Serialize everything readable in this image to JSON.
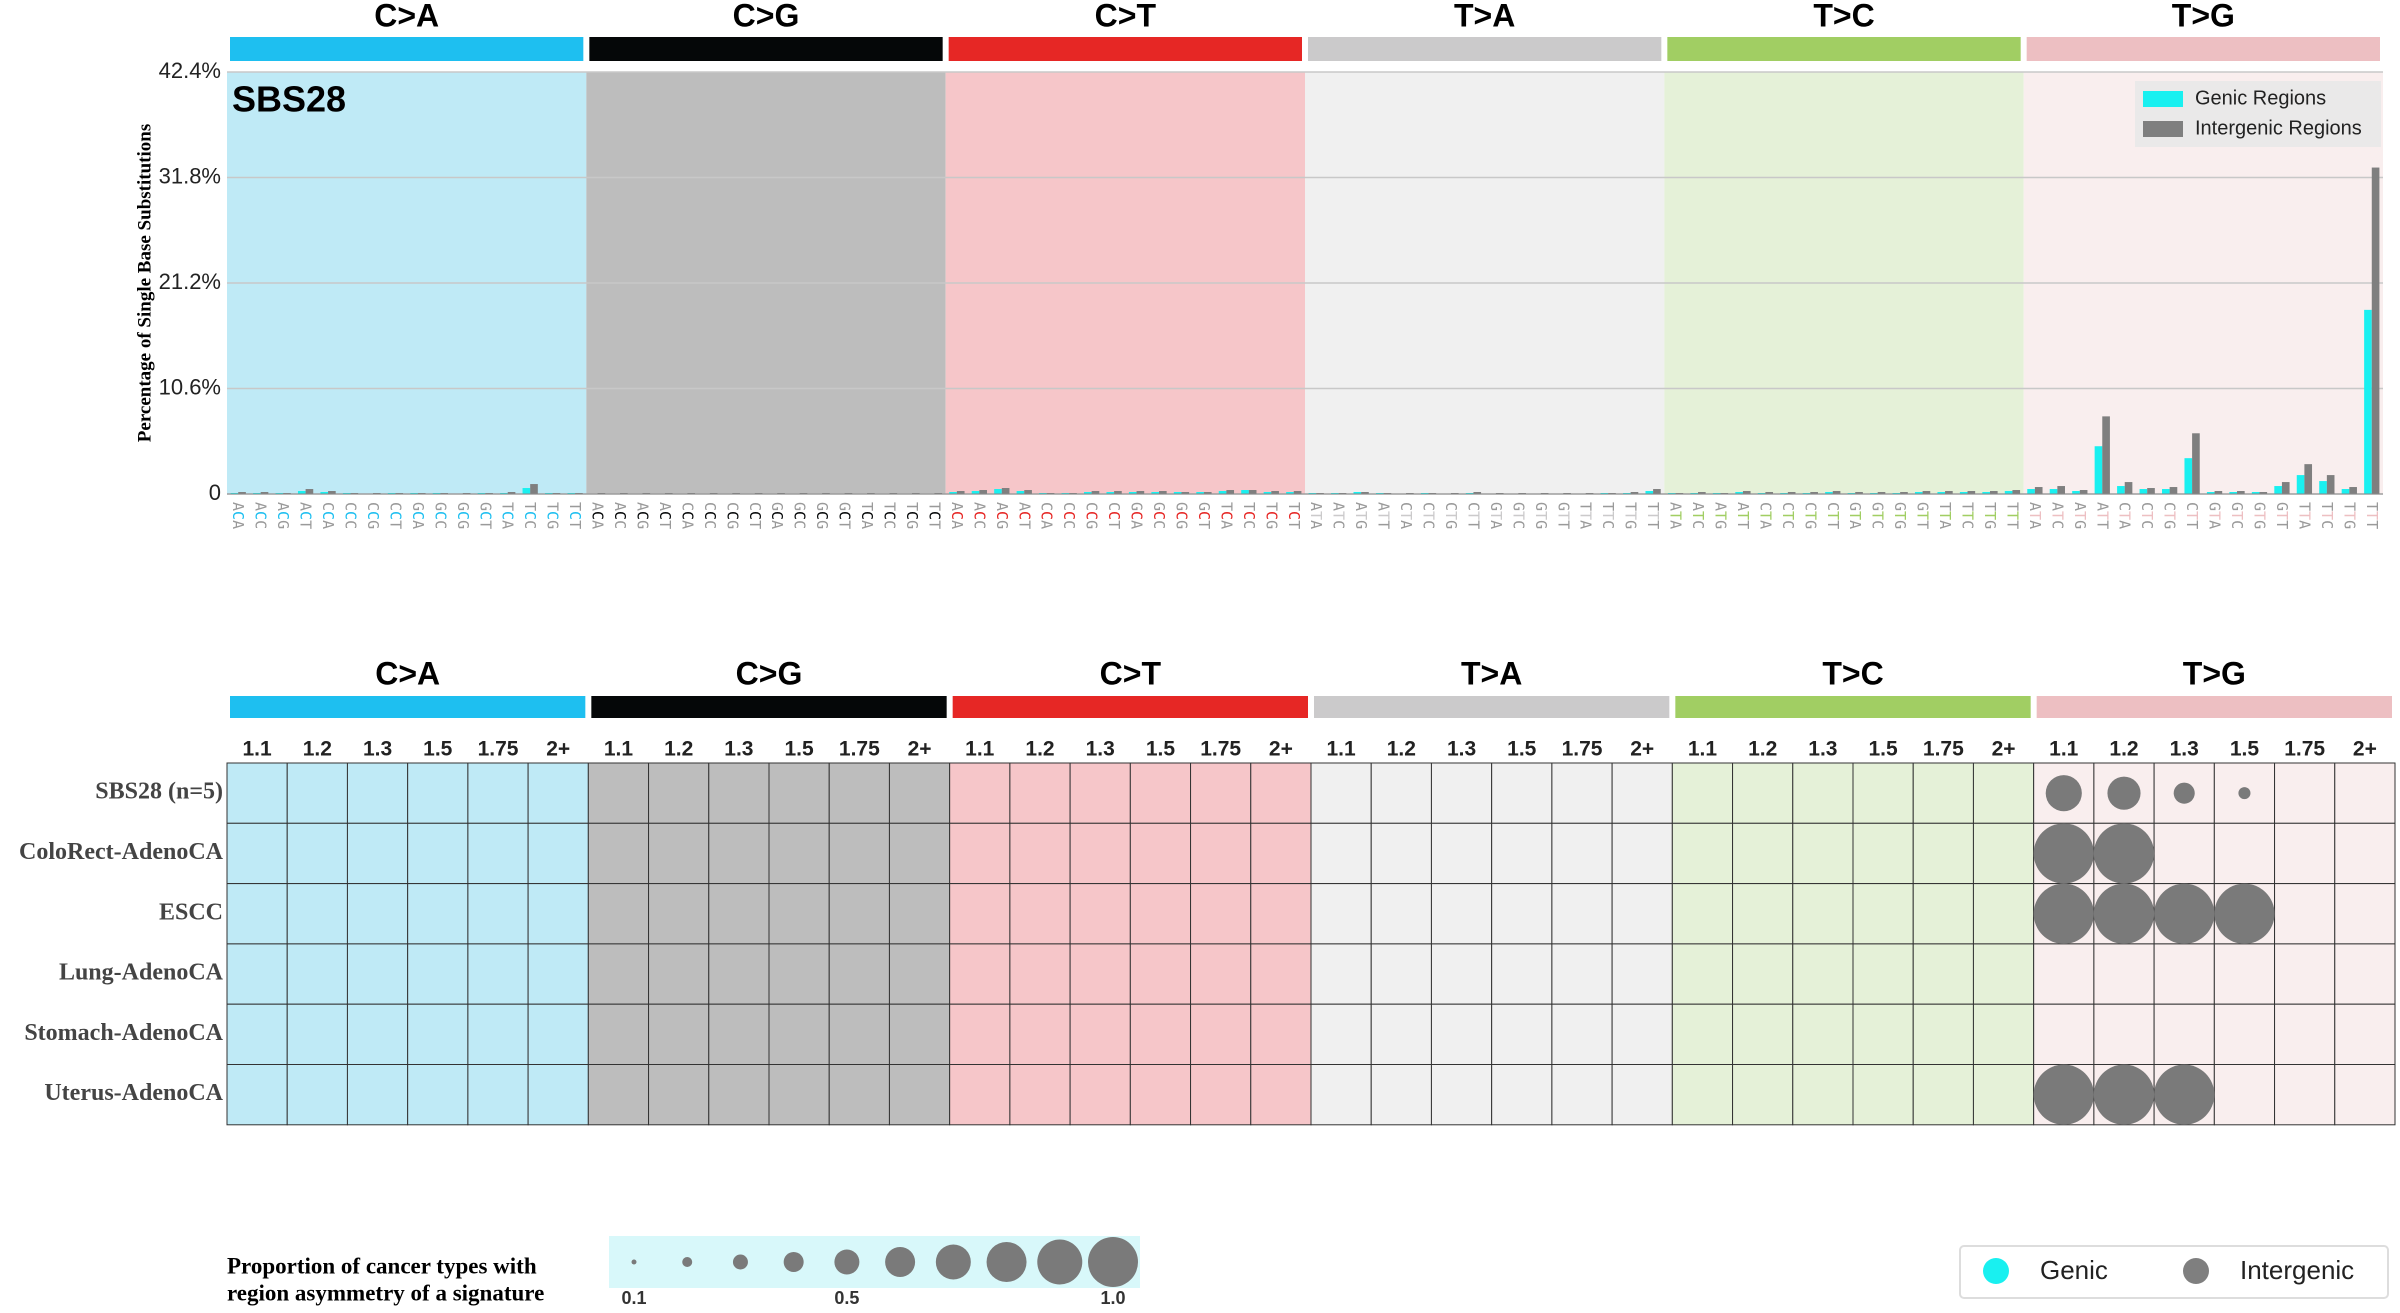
{
  "chart_data": [
    {
      "type": "bar",
      "annotation": "SBS28",
      "ylabel": "Percentage of Single Base Substitutions",
      "groups": [
        {
          "name": "C>A",
          "color": "#1ebff0",
          "background": "#bfeaf6"
        },
        {
          "name": "C>G",
          "color": "#050708",
          "background": "#bdbdbd"
        },
        {
          "name": "C>T",
          "color": "#e62725",
          "background": "#f6c6c9"
        },
        {
          "name": "T>A",
          "color": "#cbcacb",
          "background": "#f0f0f0"
        },
        {
          "name": "T>C",
          "color": "#a1ce63",
          "background": "#e5f1d8"
        },
        {
          "name": "T>G",
          "color": "#edbfc2",
          "background": "#f9eeee"
        }
      ],
      "categories": [
        "ACA",
        "ACC",
        "ACG",
        "ACT",
        "CCA",
        "CCC",
        "CCG",
        "CCT",
        "GCA",
        "GCC",
        "GCG",
        "GCT",
        "TCA",
        "TCC",
        "TCG",
        "TCT",
        "ACA",
        "ACC",
        "ACG",
        "ACT",
        "CCA",
        "CCC",
        "CCG",
        "CCT",
        "GCA",
        "GCC",
        "GCG",
        "GCT",
        "TCA",
        "TCC",
        "TCG",
        "TCT",
        "ACA",
        "ACC",
        "ACG",
        "ACT",
        "CCA",
        "CCC",
        "CCG",
        "CCT",
        "GCA",
        "GCC",
        "GCG",
        "GCT",
        "TCA",
        "TCC",
        "TCG",
        "TCT",
        "ATA",
        "ATC",
        "ATG",
        "ATT",
        "CTA",
        "CTC",
        "CTG",
        "CTT",
        "GTA",
        "GTC",
        "GTG",
        "GTT",
        "TTA",
        "TTC",
        "TTG",
        "TTT",
        "ATA",
        "ATC",
        "ATG",
        "ATT",
        "CTA",
        "CTC",
        "CTG",
        "CTT",
        "GTA",
        "GTC",
        "GTG",
        "GTT",
        "TTA",
        "TTC",
        "TTG",
        "TTT",
        "ATA",
        "ATC",
        "ATG",
        "ATT",
        "CTA",
        "CTC",
        "CTG",
        "CTT",
        "GTA",
        "GTC",
        "GTG",
        "GTT",
        "TTA",
        "TTC",
        "TTG",
        "TTT"
      ],
      "series": [
        {
          "name": "Genic Regions",
          "color": "#19f0f0",
          "values": [
            0.1,
            0.1,
            0.1,
            0.3,
            0.2,
            0.1,
            0.05,
            0.1,
            0.1,
            0.1,
            0.05,
            0.1,
            0.1,
            0.6,
            0.1,
            0.1,
            0.05,
            0.05,
            0.05,
            0.05,
            0.05,
            0.05,
            0.05,
            0.05,
            0.05,
            0.05,
            0.05,
            0.05,
            0.05,
            0.05,
            0.05,
            0.05,
            0.2,
            0.3,
            0.5,
            0.3,
            0.1,
            0.1,
            0.2,
            0.2,
            0.2,
            0.2,
            0.2,
            0.2,
            0.3,
            0.4,
            0.2,
            0.2,
            0.1,
            0.1,
            0.2,
            0.1,
            0.05,
            0.1,
            0.05,
            0.1,
            0.05,
            0.05,
            0.05,
            0.05,
            0.05,
            0.1,
            0.1,
            0.3,
            0.1,
            0.1,
            0.1,
            0.2,
            0.1,
            0.1,
            0.1,
            0.2,
            0.1,
            0.1,
            0.1,
            0.2,
            0.2,
            0.2,
            0.2,
            0.3,
            0.5,
            0.5,
            0.3,
            4.8,
            0.8,
            0.5,
            0.5,
            3.6,
            0.2,
            0.2,
            0.2,
            0.8,
            1.9,
            1.3,
            0.5,
            18.5
          ]
        },
        {
          "name": "Intergenic Regions",
          "color": "#7f7f7f",
          "values": [
            0.2,
            0.2,
            0.1,
            0.5,
            0.3,
            0.1,
            0.1,
            0.1,
            0.1,
            0.1,
            0.1,
            0.1,
            0.2,
            1.0,
            0.1,
            0.1,
            0.1,
            0.1,
            0.1,
            0.1,
            0.1,
            0.1,
            0.1,
            0.1,
            0.1,
            0.1,
            0.1,
            0.1,
            0.1,
            0.1,
            0.1,
            0.1,
            0.3,
            0.4,
            0.6,
            0.4,
            0.1,
            0.1,
            0.3,
            0.3,
            0.3,
            0.3,
            0.2,
            0.2,
            0.4,
            0.4,
            0.3,
            0.3,
            0.1,
            0.1,
            0.2,
            0.1,
            0.1,
            0.1,
            0.1,
            0.2,
            0.1,
            0.1,
            0.1,
            0.1,
            0.1,
            0.1,
            0.2,
            0.5,
            0.1,
            0.2,
            0.1,
            0.3,
            0.2,
            0.2,
            0.2,
            0.3,
            0.2,
            0.2,
            0.2,
            0.3,
            0.3,
            0.3,
            0.3,
            0.4,
            0.7,
            0.8,
            0.4,
            7.8,
            1.2,
            0.6,
            0.7,
            6.1,
            0.3,
            0.3,
            0.2,
            1.2,
            3.0,
            1.9,
            0.7,
            32.8
          ]
        }
      ],
      "ylim": [
        0,
        42.4
      ],
      "yticks": [
        0,
        {
          "value": 10.6,
          "label": "10.6%"
        },
        {
          "value": 21.2,
          "label": "21.2%"
        },
        {
          "value": 31.8,
          "label": "31.8%"
        },
        {
          "value": 42.4,
          "label": "42.4%"
        }
      ],
      "grid": true,
      "legend": "upper right"
    },
    {
      "type": "bubble",
      "groups": [
        {
          "name": "C>A",
          "color": "#1ebff0",
          "background": "#bfeaf6"
        },
        {
          "name": "C>G",
          "color": "#050708",
          "background": "#bdbdbd"
        },
        {
          "name": "C>T",
          "color": "#e62725",
          "background": "#f6c6c9"
        },
        {
          "name": "T>A",
          "color": "#cbcacb",
          "background": "#f0f0f0"
        },
        {
          "name": "T>C",
          "color": "#a1ce63",
          "background": "#e5f1d8"
        },
        {
          "name": "T>G",
          "color": "#edbfc2",
          "background": "#f9eeee"
        }
      ],
      "columns": [
        "1.1",
        "1.2",
        "1.3",
        "1.5",
        "1.75",
        "2+"
      ],
      "color": "#7a7a7a",
      "rows": [
        {
          "name": "SBS28 (n=5)",
          "values": [
            null,
            null,
            null,
            null,
            null,
            null,
            null,
            null,
            null,
            null,
            null,
            null,
            null,
            null,
            null,
            null,
            null,
            null,
            null,
            null,
            null,
            null,
            null,
            null,
            null,
            null,
            null,
            null,
            null,
            null,
            0.6,
            0.55,
            0.35,
            0.2,
            null,
            null
          ]
        },
        {
          "name": "ColoRect-AdenoCA",
          "values": [
            null,
            null,
            null,
            null,
            null,
            null,
            null,
            null,
            null,
            null,
            null,
            null,
            null,
            null,
            null,
            null,
            null,
            null,
            null,
            null,
            null,
            null,
            null,
            null,
            null,
            null,
            null,
            null,
            null,
            null,
            1,
            1,
            null,
            null,
            null,
            null
          ]
        },
        {
          "name": "ESCC",
          "values": [
            null,
            null,
            null,
            null,
            null,
            null,
            null,
            null,
            null,
            null,
            null,
            null,
            null,
            null,
            null,
            null,
            null,
            null,
            null,
            null,
            null,
            null,
            null,
            null,
            null,
            null,
            null,
            null,
            null,
            null,
            1,
            1,
            1,
            1,
            null,
            null
          ]
        },
        {
          "name": "Lung-AdenoCA",
          "values": [
            null,
            null,
            null,
            null,
            null,
            null,
            null,
            null,
            null,
            null,
            null,
            null,
            null,
            null,
            null,
            null,
            null,
            null,
            null,
            null,
            null,
            null,
            null,
            null,
            null,
            null,
            null,
            null,
            null,
            null,
            null,
            null,
            null,
            null,
            null,
            null
          ]
        },
        {
          "name": "Stomach-AdenoCA",
          "values": [
            null,
            null,
            null,
            null,
            null,
            null,
            null,
            null,
            null,
            null,
            null,
            null,
            null,
            null,
            null,
            null,
            null,
            null,
            null,
            null,
            null,
            null,
            null,
            null,
            null,
            null,
            null,
            null,
            null,
            null,
            null,
            null,
            null,
            null,
            null,
            null
          ]
        },
        {
          "name": "Uterus-AdenoCA",
          "values": [
            null,
            null,
            null,
            null,
            null,
            null,
            null,
            null,
            null,
            null,
            null,
            null,
            null,
            null,
            null,
            null,
            null,
            null,
            null,
            null,
            null,
            null,
            null,
            null,
            null,
            null,
            null,
            null,
            null,
            null,
            1,
            1,
            1,
            null,
            null,
            null
          ]
        }
      ],
      "size_legend": {
        "title": [
          "Proportion of cancer types with",
          "region asymmetry of a signature"
        ],
        "values": [
          0.1,
          0.2,
          0.3,
          0.4,
          0.5,
          0.6,
          0.7,
          0.8,
          0.9,
          1.0
        ],
        "ticks": [
          0.1,
          0.5,
          {
            "value": 1.0,
            "label": "1.0"
          }
        ]
      },
      "legend": [
        {
          "name": "Genic",
          "color": "#19f0f0"
        },
        {
          "name": "Intergenic",
          "color": "#7f7f7f"
        }
      ]
    }
  ]
}
